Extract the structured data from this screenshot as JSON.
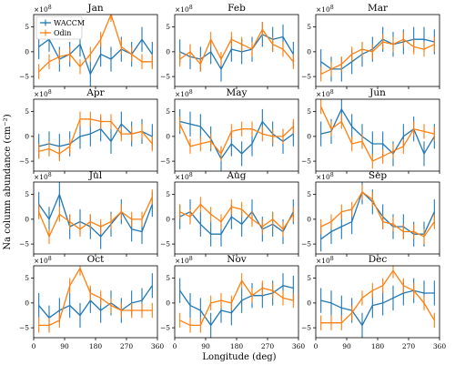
{
  "figure": {
    "ylabel": "Na column abundance (cm⁻²)",
    "xlabel": "Longitude (deg)",
    "y_multiplier": "×10",
    "y_multiplier_exp": "8",
    "legend": [
      "WACCM",
      "Odin"
    ]
  },
  "colors": {
    "WACCM": "#1f77b4",
    "Odin": "#ff7f0e"
  },
  "chart_data": {
    "type": "line",
    "note_units": "y values in units of 1e8 cm^-2; error bars are half-widths",
    "x": [
      15,
      45,
      75,
      105,
      135,
      165,
      195,
      225,
      255,
      285,
      315,
      345
    ],
    "xlim": [
      0,
      360
    ],
    "xticks": [
      0,
      90,
      180,
      270,
      360
    ],
    "ylim": [
      -7,
      7.5
    ],
    "yticks": [
      -5,
      0,
      5
    ],
    "panels": [
      {
        "title": "Jan",
        "series": [
          {
            "name": "WACCM",
            "values": [
              1.0,
              2.5,
              -1.5,
              -0.5,
              1.5,
              -4.5,
              -0.5,
              -1.5,
              0.5,
              -0.5,
              2.5,
              -0.5
            ],
            "err": [
              2.5,
              2.5,
              2.5,
              2.5,
              2.5,
              2.5,
              2.5,
              2.5,
              2.5,
              2.5,
              2.5,
              2.5
            ]
          },
          {
            "name": "Odin",
            "values": [
              -4.0,
              -2.0,
              -1.0,
              -0.5,
              -3.0,
              -0.5,
              2.5,
              7.5,
              1.0,
              -0.5,
              -2.0,
              -2.0
            ],
            "err": [
              1.5,
              1.5,
              1.5,
              1.5,
              1.5,
              1.5,
              1.5,
              1.5,
              1.5,
              1.5,
              1.5,
              1.5
            ]
          }
        ]
      },
      {
        "title": "Feb",
        "series": [
          {
            "name": "WACCM",
            "values": [
              0.0,
              -1.0,
              -1.5,
              0.0,
              -3.5,
              0.5,
              0.0,
              0.5,
              3.5,
              2.5,
              3.0,
              -0.5
            ],
            "err": [
              2.5,
              2.5,
              2.5,
              2.5,
              2.5,
              2.5,
              2.5,
              2.5,
              2.5,
              2.5,
              2.5,
              2.5
            ]
          },
          {
            "name": "Odin",
            "values": [
              -1.5,
              0.0,
              -2.5,
              2.5,
              -1.5,
              2.5,
              1.5,
              0.5,
              4.5,
              1.5,
              0.5,
              -2.0
            ],
            "err": [
              1.5,
              1.5,
              1.5,
              1.5,
              1.5,
              1.5,
              1.5,
              1.5,
              1.5,
              1.5,
              1.5,
              1.5
            ]
          }
        ]
      },
      {
        "title": "Mar",
        "series": [
          {
            "name": "WACCM",
            "values": [
              -2.0,
              -3.5,
              -3.5,
              -2.0,
              -0.5,
              0.5,
              2.5,
              1.5,
              2.0,
              2.5,
              2.5,
              2.0
            ],
            "err": [
              2.5,
              2.5,
              2.5,
              2.5,
              2.5,
              2.5,
              2.5,
              2.5,
              2.5,
              2.5,
              2.5,
              2.5
            ]
          },
          {
            "name": "Odin",
            "values": [
              -4.5,
              -3.5,
              -2.5,
              -0.5,
              0.5,
              0.0,
              2.0,
              1.5,
              2.5,
              1.0,
              0.5,
              1.5
            ],
            "err": [
              1.5,
              1.5,
              1.5,
              1.5,
              1.5,
              1.5,
              1.5,
              1.5,
              1.5,
              1.5,
              1.5,
              1.5
            ]
          }
        ]
      },
      {
        "title": "Apr",
        "series": [
          {
            "name": "WACCM",
            "values": [
              -2.0,
              -1.5,
              -2.0,
              -1.5,
              0.0,
              0.5,
              1.5,
              -1.0,
              2.5,
              0.5,
              1.0,
              0.0
            ],
            "err": [
              2.5,
              2.5,
              2.5,
              2.5,
              2.5,
              2.5,
              2.5,
              2.5,
              2.5,
              2.5,
              2.5,
              2.5
            ]
          },
          {
            "name": "Odin",
            "values": [
              -3.0,
              -2.5,
              -3.5,
              -2.0,
              3.5,
              3.5,
              3.0,
              3.0,
              0.5,
              0.5,
              1.0,
              -1.5
            ],
            "err": [
              1.5,
              1.5,
              1.5,
              1.5,
              1.5,
              1.5,
              1.5,
              1.5,
              1.5,
              1.5,
              1.5,
              1.5
            ]
          }
        ]
      },
      {
        "title": "May",
        "series": [
          {
            "name": "WACCM",
            "values": [
              3.0,
              2.5,
              2.0,
              -0.5,
              -4.5,
              -1.5,
              -3.5,
              -1.5,
              3.0,
              0.5,
              -1.0,
              0.5
            ],
            "err": [
              2.5,
              2.5,
              2.5,
              2.5,
              2.5,
              2.5,
              2.5,
              2.5,
              2.5,
              2.5,
              2.5,
              2.5
            ]
          },
          {
            "name": "Odin",
            "values": [
              2.5,
              -2.0,
              -1.5,
              -1.0,
              -3.5,
              1.0,
              1.5,
              1.5,
              0.5,
              0.0,
              0.0,
              2.0
            ],
            "err": [
              1.5,
              1.5,
              1.5,
              1.5,
              1.5,
              1.5,
              1.5,
              1.5,
              1.5,
              1.5,
              1.5,
              1.5
            ]
          }
        ]
      },
      {
        "title": "Jun",
        "series": [
          {
            "name": "WACCM",
            "values": [
              0.5,
              1.0,
              5.5,
              2.0,
              0.0,
              -1.5,
              -1.5,
              -3.5,
              0.0,
              1.5,
              -3.5,
              0.0
            ],
            "err": [
              2.5,
              2.5,
              2.5,
              2.5,
              2.5,
              2.5,
              2.5,
              2.5,
              2.5,
              2.5,
              2.5,
              2.5
            ]
          },
          {
            "name": "Odin",
            "values": [
              6.0,
              1.5,
              3.0,
              -1.5,
              -1.0,
              -5.0,
              -4.0,
              -3.0,
              -2.0,
              1.5,
              1.0,
              0.5
            ],
            "err": [
              1.5,
              1.5,
              1.5,
              1.5,
              1.5,
              1.5,
              1.5,
              1.5,
              1.5,
              1.5,
              1.5,
              1.5
            ]
          }
        ]
      },
      {
        "title": "Jul",
        "series": [
          {
            "name": "WACCM",
            "values": [
              3.0,
              0.0,
              5.0,
              -1.5,
              -0.5,
              -1.5,
              -3.5,
              -1.0,
              1.5,
              -2.0,
              -2.5,
              3.0
            ],
            "err": [
              2.5,
              2.5,
              2.5,
              2.5,
              2.5,
              2.5,
              2.5,
              2.5,
              2.5,
              2.5,
              2.5,
              2.5
            ]
          },
          {
            "name": "Odin",
            "values": [
              1.5,
              -3.5,
              1.0,
              -0.5,
              -2.0,
              -0.5,
              -1.5,
              -0.5,
              1.5,
              0.0,
              0.0,
              4.5
            ],
            "err": [
              1.5,
              1.5,
              1.5,
              1.5,
              1.5,
              1.5,
              1.5,
              1.5,
              1.5,
              1.5,
              1.5,
              1.5
            ]
          }
        ]
      },
      {
        "title": "Aug",
        "series": [
          {
            "name": "WACCM",
            "values": [
              0.5,
              1.5,
              -1.0,
              -3.0,
              -3.0,
              0.5,
              -1.0,
              1.5,
              -2.0,
              -1.0,
              -2.5,
              1.5
            ],
            "err": [
              2.5,
              2.5,
              2.5,
              2.5,
              2.5,
              2.5,
              2.5,
              2.5,
              2.5,
              2.5,
              2.5,
              2.5
            ]
          },
          {
            "name": "Odin",
            "values": [
              1.5,
              0.5,
              3.0,
              1.0,
              -0.5,
              2.5,
              2.0,
              0.0,
              -1.5,
              0.0,
              -2.0,
              1.0
            ],
            "err": [
              1.5,
              1.5,
              1.5,
              1.5,
              1.5,
              1.5,
              1.5,
              1.5,
              1.5,
              1.5,
              1.5,
              1.5
            ]
          }
        ]
      },
      {
        "title": "Sep",
        "series": [
          {
            "name": "WACCM",
            "values": [
              -4.0,
              -2.5,
              -1.5,
              -0.5,
              5.5,
              3.5,
              0.5,
              -1.5,
              -1.5,
              -3.0,
              -3.0,
              1.5
            ],
            "err": [
              2.5,
              2.5,
              2.5,
              2.5,
              2.5,
              2.5,
              2.5,
              2.5,
              2.5,
              2.5,
              2.5,
              2.5
            ]
          },
          {
            "name": "Odin",
            "values": [
              -1.5,
              -0.5,
              1.5,
              2.0,
              5.5,
              4.0,
              -0.5,
              -1.0,
              -2.5,
              -2.5,
              -3.5,
              -0.5
            ],
            "err": [
              1.5,
              1.5,
              1.5,
              1.5,
              1.5,
              1.5,
              1.5,
              1.5,
              1.5,
              1.5,
              1.5,
              1.5
            ]
          }
        ]
      },
      {
        "title": "Oct",
        "series": [
          {
            "name": "WACCM",
            "values": [
              -0.5,
              -3.0,
              -1.5,
              -0.5,
              -2.5,
              0.5,
              -1.5,
              0.0,
              -1.5,
              0.0,
              0.5,
              3.5
            ],
            "err": [
              2.5,
              2.5,
              2.5,
              2.5,
              2.5,
              2.5,
              2.5,
              2.5,
              2.5,
              2.5,
              2.5,
              2.5
            ]
          },
          {
            "name": "Odin",
            "values": [
              -4.5,
              -4.5,
              -3.5,
              3.5,
              7.0,
              2.0,
              1.0,
              -0.5,
              -1.5,
              -1.5,
              -1.5,
              -1.5
            ],
            "err": [
              1.5,
              1.5,
              1.5,
              1.5,
              1.5,
              1.5,
              1.5,
              1.5,
              1.5,
              1.5,
              1.5,
              1.5
            ]
          }
        ]
      },
      {
        "title": "Nov",
        "series": [
          {
            "name": "WACCM",
            "values": [
              2.5,
              -0.5,
              -1.5,
              -4.5,
              -1.5,
              -2.0,
              0.5,
              1.5,
              1.5,
              2.0,
              3.5,
              3.0
            ],
            "err": [
              2.5,
              2.5,
              2.5,
              2.5,
              2.5,
              2.5,
              2.5,
              2.5,
              2.5,
              2.5,
              2.5,
              2.5
            ]
          },
          {
            "name": "Odin",
            "values": [
              -3.5,
              -4.5,
              -4.5,
              0.0,
              0.5,
              0.0,
              4.5,
              1.5,
              3.0,
              2.5,
              1.0,
              0.5
            ],
            "err": [
              1.5,
              1.5,
              1.5,
              1.5,
              1.5,
              1.5,
              1.5,
              1.5,
              1.5,
              1.5,
              1.5,
              1.5
            ]
          }
        ]
      },
      {
        "title": "Dec",
        "series": [
          {
            "name": "WACCM",
            "values": [
              0.5,
              0.0,
              -1.0,
              -1.5,
              -4.5,
              -0.5,
              0.0,
              1.0,
              2.0,
              2.5,
              2.0,
              2.0
            ],
            "err": [
              2.5,
              2.5,
              2.5,
              2.5,
              2.5,
              2.5,
              2.5,
              2.5,
              2.5,
              2.5,
              2.5,
              2.5
            ]
          },
          {
            "name": "Odin",
            "values": [
              -4.0,
              -4.0,
              -4.0,
              -2.0,
              1.0,
              2.5,
              3.5,
              6.5,
              3.5,
              2.5,
              0.0,
              -3.5
            ],
            "err": [
              1.5,
              1.5,
              1.5,
              1.5,
              1.5,
              1.5,
              1.5,
              1.5,
              1.5,
              1.5,
              1.5,
              1.5
            ]
          }
        ]
      }
    ]
  }
}
